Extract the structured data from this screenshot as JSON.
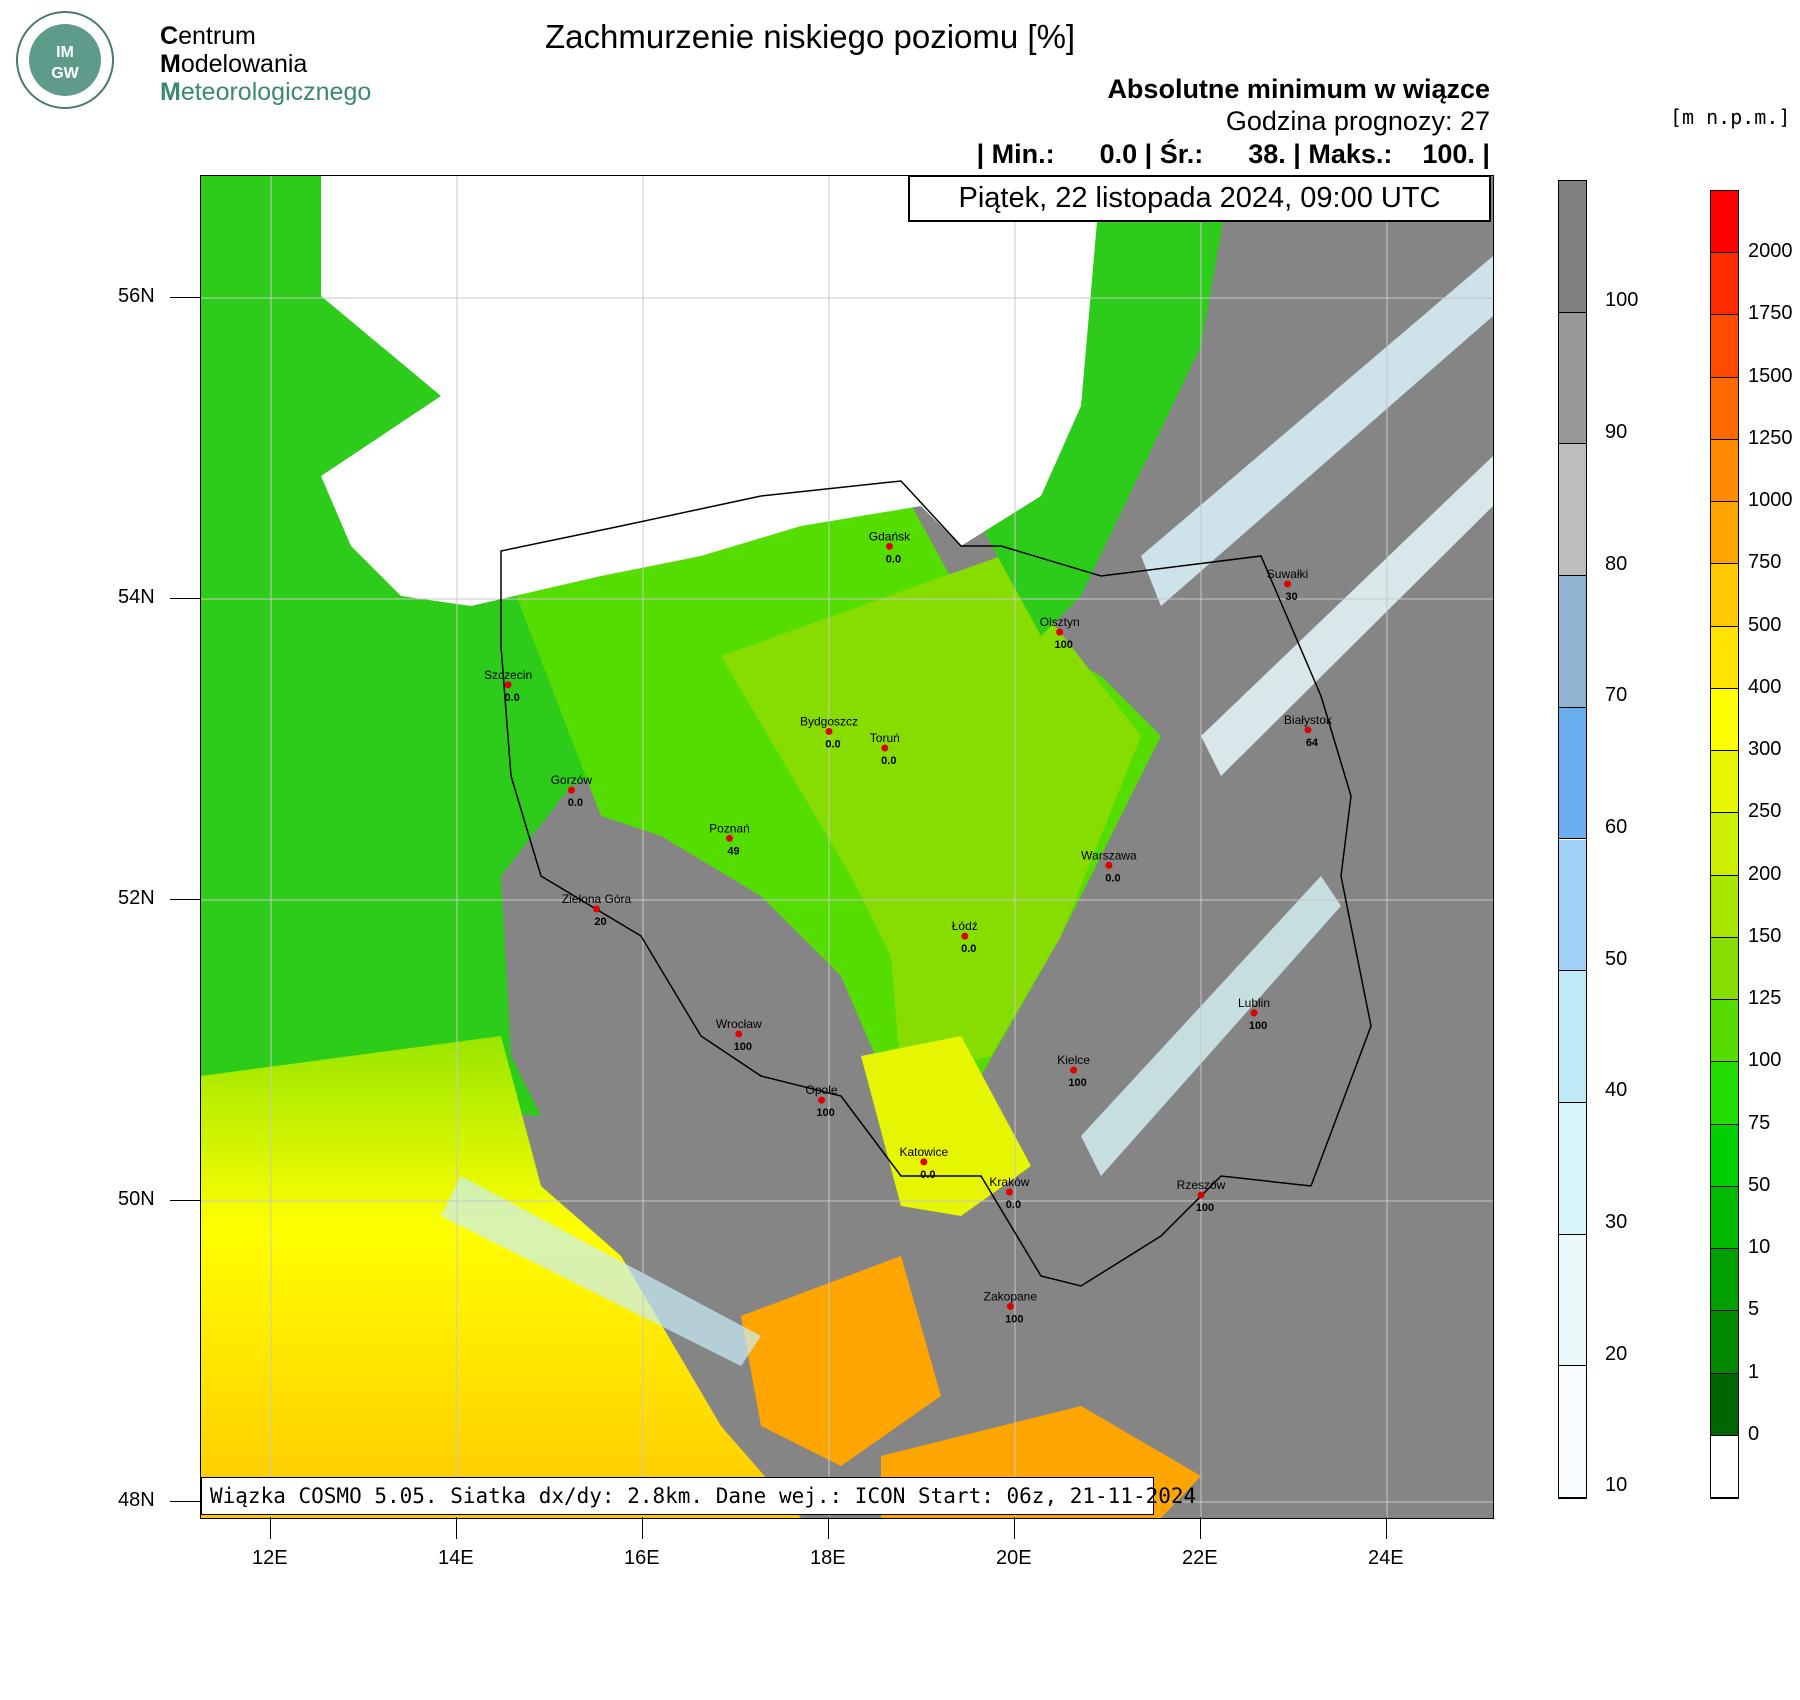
{
  "logo": {
    "badge": "IMGW",
    "line1_first": "C",
    "line1_rest": "entrum",
    "line2_first": "M",
    "line2_rest": "odelowania",
    "line3_first": "M",
    "line3_rest": "eteorologicznego"
  },
  "title": "Zachmurzenie niskiego poziomu [%]",
  "subtitle1": "Absolutne minimum w wiązce",
  "subtitle2": "Godzina prognozy: 27",
  "stats": "| Min.:      0.0 | Śr.:      38. | Maks.:    100. |",
  "date": "Piątek, 22 listopada 2024, 09:00 UTC",
  "footer": "Wiązka COSMO 5.05. Siatka dx/dy: 2.8km. Dane wej.: ICON Start: 06z, 21-11-2024",
  "units": "[m n.p.m.]",
  "lat_labels": [
    "56N",
    "54N",
    "52N",
    "50N",
    "48N"
  ],
  "lon_labels": [
    "12E",
    "14E",
    "16E",
    "18E",
    "20E",
    "22E",
    "24E"
  ],
  "cloud_scale": {
    "labels": [
      "100",
      "90",
      "80",
      "70",
      "60",
      "50",
      "40",
      "30",
      "20",
      "10"
    ],
    "colors": [
      "#808080",
      "#989898",
      "#bdbdbd",
      "#8fb4d1",
      "#6aaef0",
      "#9fd0f5",
      "#bfe9f5",
      "#d7f4f8",
      "#eafafb",
      "#f7fdfe"
    ]
  },
  "height_scale": {
    "labels": [
      "2000",
      "1750",
      "1500",
      "1250",
      "1000",
      "750",
      "500",
      "400",
      "300",
      "250",
      "200",
      "150",
      "125",
      "100",
      "75",
      "50",
      "10",
      "5",
      "1",
      "0"
    ],
    "colors": [
      "#ff0000",
      "#ff2a00",
      "#ff4a00",
      "#ff6a00",
      "#ff8a00",
      "#ffa500",
      "#ffc800",
      "#ffe400",
      "#ffff00",
      "#e6f500",
      "#ccee00",
      "#a8e600",
      "#88dd00",
      "#55dd00",
      "#22dd00",
      "#00d000",
      "#00bb00",
      "#00a000",
      "#008800",
      "#006600",
      "#ffffff"
    ]
  },
  "cities": [
    {
      "name": "Gdańsk",
      "value": "0.0",
      "lon": 18.65,
      "lat": 54.35
    },
    {
      "name": "Suwałki",
      "value": "30",
      "lon": 22.93,
      "lat": 54.1
    },
    {
      "name": "Olsztyn",
      "value": "100",
      "lon": 20.48,
      "lat": 53.78
    },
    {
      "name": "Szczecin",
      "value": "0.0",
      "lon": 14.55,
      "lat": 53.43
    },
    {
      "name": "Białystok",
      "value": "64",
      "lon": 23.15,
      "lat": 53.13
    },
    {
      "name": "Bydgoszcz",
      "value": "0.0",
      "lon": 18.0,
      "lat": 53.12
    },
    {
      "name": "Toruń",
      "value": "0.0",
      "lon": 18.6,
      "lat": 53.01
    },
    {
      "name": "Gorzów",
      "value": "0.0",
      "lon": 15.23,
      "lat": 52.73
    },
    {
      "name": "Poznań",
      "value": "49",
      "lon": 16.93,
      "lat": 52.41
    },
    {
      "name": "Warszawa",
      "value": "0.0",
      "lon": 21.01,
      "lat": 52.23
    },
    {
      "name": "Zielona Góra",
      "value": "20",
      "lon": 15.5,
      "lat": 51.94
    },
    {
      "name": "Łódź",
      "value": "0.0",
      "lon": 19.46,
      "lat": 51.76
    },
    {
      "name": "Lublin",
      "value": "100",
      "lon": 22.57,
      "lat": 51.25
    },
    {
      "name": "Wrocław",
      "value": "100",
      "lon": 17.03,
      "lat": 51.11
    },
    {
      "name": "Kielce",
      "value": "100",
      "lon": 20.63,
      "lat": 50.87
    },
    {
      "name": "Opole",
      "value": "100",
      "lon": 17.92,
      "lat": 50.67
    },
    {
      "name": "Katowice",
      "value": "0.0",
      "lon": 19.02,
      "lat": 50.26
    },
    {
      "name": "Kraków",
      "value": "0.0",
      "lon": 19.94,
      "lat": 50.06
    },
    {
      "name": "Rzeszów",
      "value": "100",
      "lon": 22.0,
      "lat": 50.04
    },
    {
      "name": "Zakopane",
      "value": "100",
      "lon": 19.95,
      "lat": 49.3
    }
  ]
}
